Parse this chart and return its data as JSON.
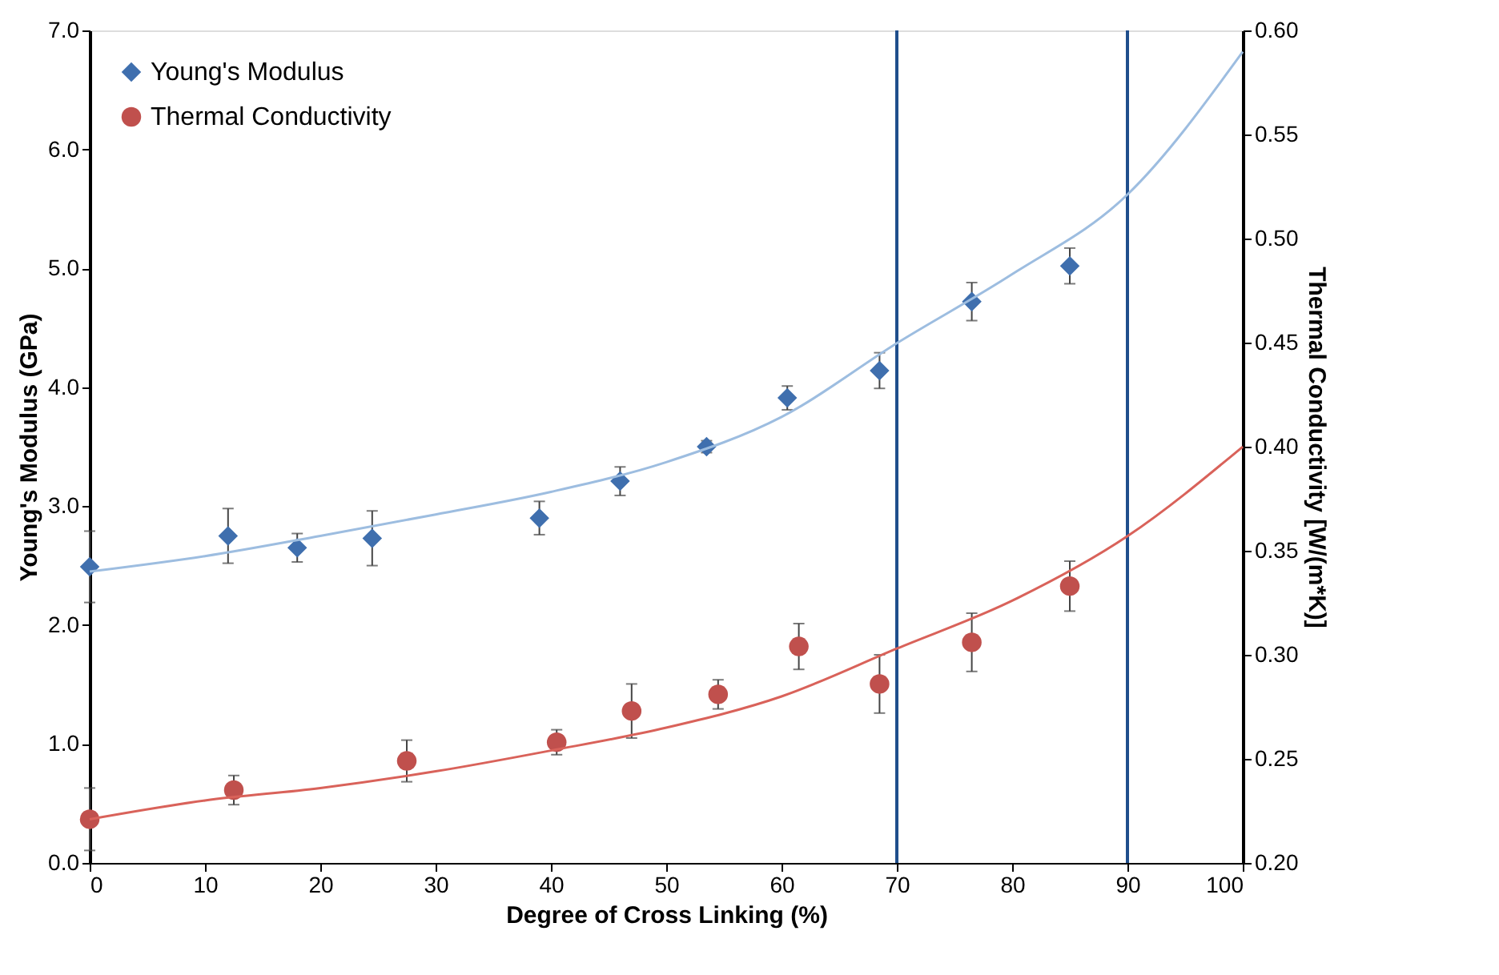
{
  "chart_data": {
    "type": "scatter",
    "xlabel": "Degree of Cross Linking (%)",
    "ylabel": "Young's Modulus (GPa)",
    "y2label": "Thermal Conductivity [W/(m*K)]",
    "xlim": [
      0,
      100
    ],
    "xticks": [
      0,
      10,
      20,
      30,
      40,
      50,
      60,
      70,
      80,
      90,
      100
    ],
    "ylim": [
      0,
      7
    ],
    "yticks": [
      {
        "value": 0,
        "label": "0.0"
      },
      {
        "value": 1,
        "label": "1.0"
      },
      {
        "value": 2,
        "label": "2.0"
      },
      {
        "value": 3,
        "label": "3.0"
      },
      {
        "value": 4,
        "label": "4.0"
      },
      {
        "value": 5,
        "label": "5.0"
      },
      {
        "value": 6,
        "label": "6.0"
      },
      {
        "value": 7,
        "label": "7.0"
      }
    ],
    "y2lim": [
      0.2,
      0.6
    ],
    "y2ticks": [
      {
        "value": 0.2,
        "label": "0.20"
      },
      {
        "value": 0.25,
        "label": "0.25"
      },
      {
        "value": 0.3,
        "label": "0.30"
      },
      {
        "value": 0.35,
        "label": "0.35"
      },
      {
        "value": 0.4,
        "label": "0.40"
      },
      {
        "value": 0.45,
        "label": "0.45"
      },
      {
        "value": 0.5,
        "label": "0.50"
      },
      {
        "value": 0.55,
        "label": "0.55"
      },
      {
        "value": 0.6,
        "label": "0.60"
      }
    ],
    "grid": false,
    "legend": "top left",
    "series": [
      {
        "name": "Young's Modulus",
        "marker": "diamond",
        "color": "#3f6fae",
        "x": [
          0,
          12,
          18,
          24.5,
          39,
          46,
          53.5,
          60.5,
          68.5,
          76.5,
          85
        ],
        "values": [
          2.49,
          2.75,
          2.65,
          2.73,
          2.9,
          3.21,
          3.5,
          3.91,
          4.14,
          4.72,
          5.02
        ],
        "errors": [
          0.3,
          0.23,
          0.12,
          0.23,
          0.14,
          0.12,
          0.05,
          0.1,
          0.15,
          0.16,
          0.15
        ]
      },
      {
        "name": "Thermal Conductivity",
        "marker": "circle",
        "axis": "y2",
        "color": "#c0504d",
        "x": [
          0,
          12.5,
          27.5,
          40.5,
          47,
          54.5,
          61.5,
          68.5,
          76.5,
          85
        ],
        "values": [
          0.221,
          0.235,
          0.249,
          0.258,
          0.273,
          0.281,
          0.304,
          0.286,
          0.306,
          0.333
        ],
        "errors": [
          0.015,
          0.007,
          0.01,
          0.006,
          0.013,
          0.007,
          0.011,
          0.014,
          0.014,
          0.012
        ]
      },
      {
        "type": "line",
        "line_style": "solid",
        "color": "#9dbde0",
        "x": [
          0,
          10,
          20,
          30,
          40,
          50,
          60,
          70,
          80,
          90,
          100
        ],
        "values": [
          2.45,
          2.58,
          2.75,
          2.93,
          3.12,
          3.37,
          3.75,
          4.37,
          4.95,
          5.62,
          6.82
        ]
      },
      {
        "type": "line",
        "line_style": "solid",
        "axis": "y2",
        "color": "#d9625a",
        "x": [
          0,
          10,
          20,
          30,
          40,
          50,
          60,
          70,
          80,
          90,
          100
        ],
        "values": [
          0.221,
          0.23,
          0.236,
          0.244,
          0.254,
          0.265,
          0.28,
          0.303,
          0.326,
          0.357,
          0.4
        ]
      }
    ],
    "ref_lines": [
      {
        "axis": "x",
        "value": 70,
        "color": "#1f4e8c"
      },
      {
        "axis": "x",
        "value": 90,
        "color": "#1f4e8c"
      }
    ]
  }
}
